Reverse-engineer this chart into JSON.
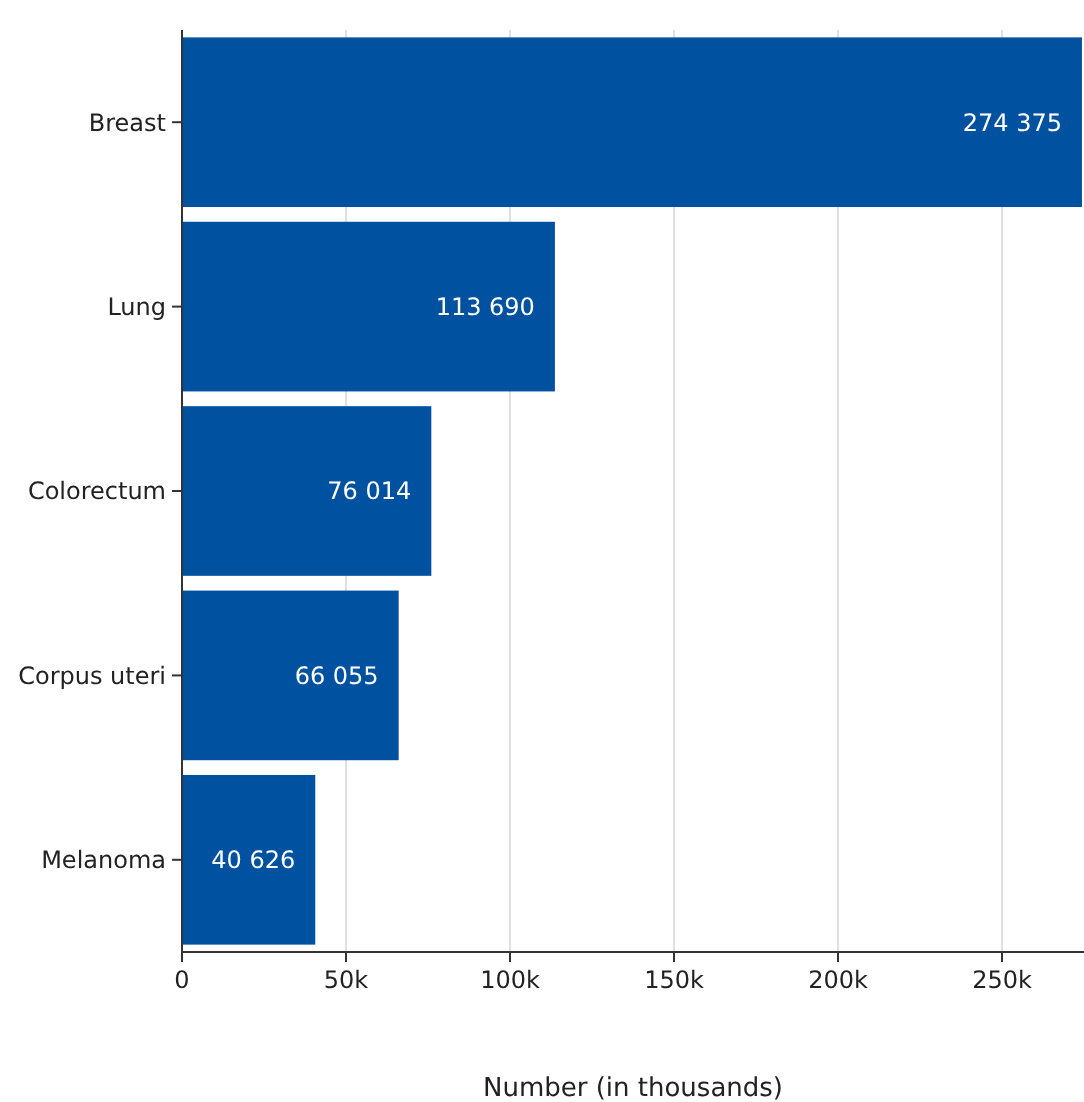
{
  "chart_data": {
    "type": "bar",
    "orientation": "horizontal",
    "xlabel": "Number (in thousands)",
    "categories": [
      "Breast",
      "Lung",
      "Colorectum",
      "Corpus uteri",
      "Melanoma"
    ],
    "values": [
      274375,
      113690,
      76014,
      66055,
      40626
    ],
    "value_labels": [
      "274 375",
      "113 690",
      "76 014",
      "66 055",
      "40 626"
    ],
    "color": "#0051a0",
    "xlim": [
      0,
      275000
    ],
    "xticks": [
      {
        "value": 0,
        "label": "0"
      },
      {
        "value": 50000,
        "label": "50k"
      },
      {
        "value": 100000,
        "label": "100k"
      },
      {
        "value": 150000,
        "label": "150k"
      },
      {
        "value": 200000,
        "label": "200k"
      },
      {
        "value": 250000,
        "label": "250k"
      }
    ],
    "grid": "x"
  }
}
